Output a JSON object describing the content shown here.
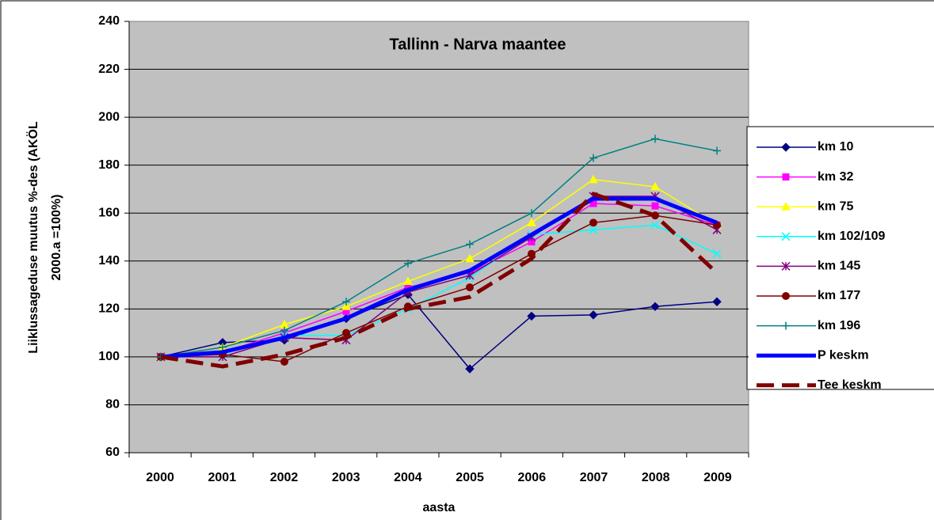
{
  "chart_data": {
    "type": "line",
    "title": "Tallinn - Narva maantee",
    "x_label": "aasta",
    "y_label": [
      "Liiklussageduse muutus %-des (AKÖL",
      "2000.a =100%)"
    ],
    "categories": [
      "2000",
      "2001",
      "2002",
      "2003",
      "2004",
      "2005",
      "2006",
      "2007",
      "2008",
      "2009"
    ],
    "ylim": [
      60,
      240
    ],
    "yticks": [
      60,
      80,
      100,
      120,
      140,
      160,
      180,
      200,
      220,
      240
    ],
    "grid": true,
    "legend": "right",
    "series": [
      {
        "name": "km 10",
        "color": "#000080",
        "marker": "diamond",
        "values": [
          100,
          106,
          107,
          116,
          126,
          95,
          117,
          117.5,
          121,
          123
        ]
      },
      {
        "name": "km 32",
        "color": "#ff00ff",
        "marker": "square",
        "values": [
          100,
          102,
          110,
          119,
          129,
          135,
          148,
          164,
          163,
          155
        ]
      },
      {
        "name": "km 75",
        "color": "#ffff00",
        "marker": "triangle",
        "values": [
          100,
          104,
          113.5,
          121,
          131.5,
          141,
          156,
          174,
          171,
          155
        ]
      },
      {
        "name": "km 102/109",
        "color": "#00ffff",
        "marker": "x",
        "values": [
          100,
          101,
          109,
          109,
          120,
          133,
          151,
          153,
          155,
          143
        ]
      },
      {
        "name": "km 145",
        "color": "#800080",
        "marker": "star",
        "values": [
          100,
          100,
          108,
          107,
          127,
          134,
          150,
          167,
          167,
          153
        ]
      },
      {
        "name": "km 177",
        "color": "#800000",
        "marker": "circle",
        "values": [
          100,
          101,
          98,
          110,
          121,
          129,
          143,
          156,
          159,
          155
        ]
      },
      {
        "name": "km 196",
        "color": "#008080",
        "marker": "plus",
        "values": [
          100,
          104,
          111,
          123,
          139,
          147,
          160,
          183,
          191,
          186
        ]
      },
      {
        "name": "P keskm",
        "color": "#0000ff",
        "width": 5,
        "values": [
          100,
          102,
          108,
          116,
          128,
          136,
          151,
          166,
          166,
          156
        ]
      },
      {
        "name": "Tee keskm",
        "color": "#800000",
        "width": 5,
        "dash": true,
        "values": [
          100,
          96,
          101,
          108,
          120,
          125,
          141,
          168,
          159,
          135
        ]
      }
    ]
  }
}
